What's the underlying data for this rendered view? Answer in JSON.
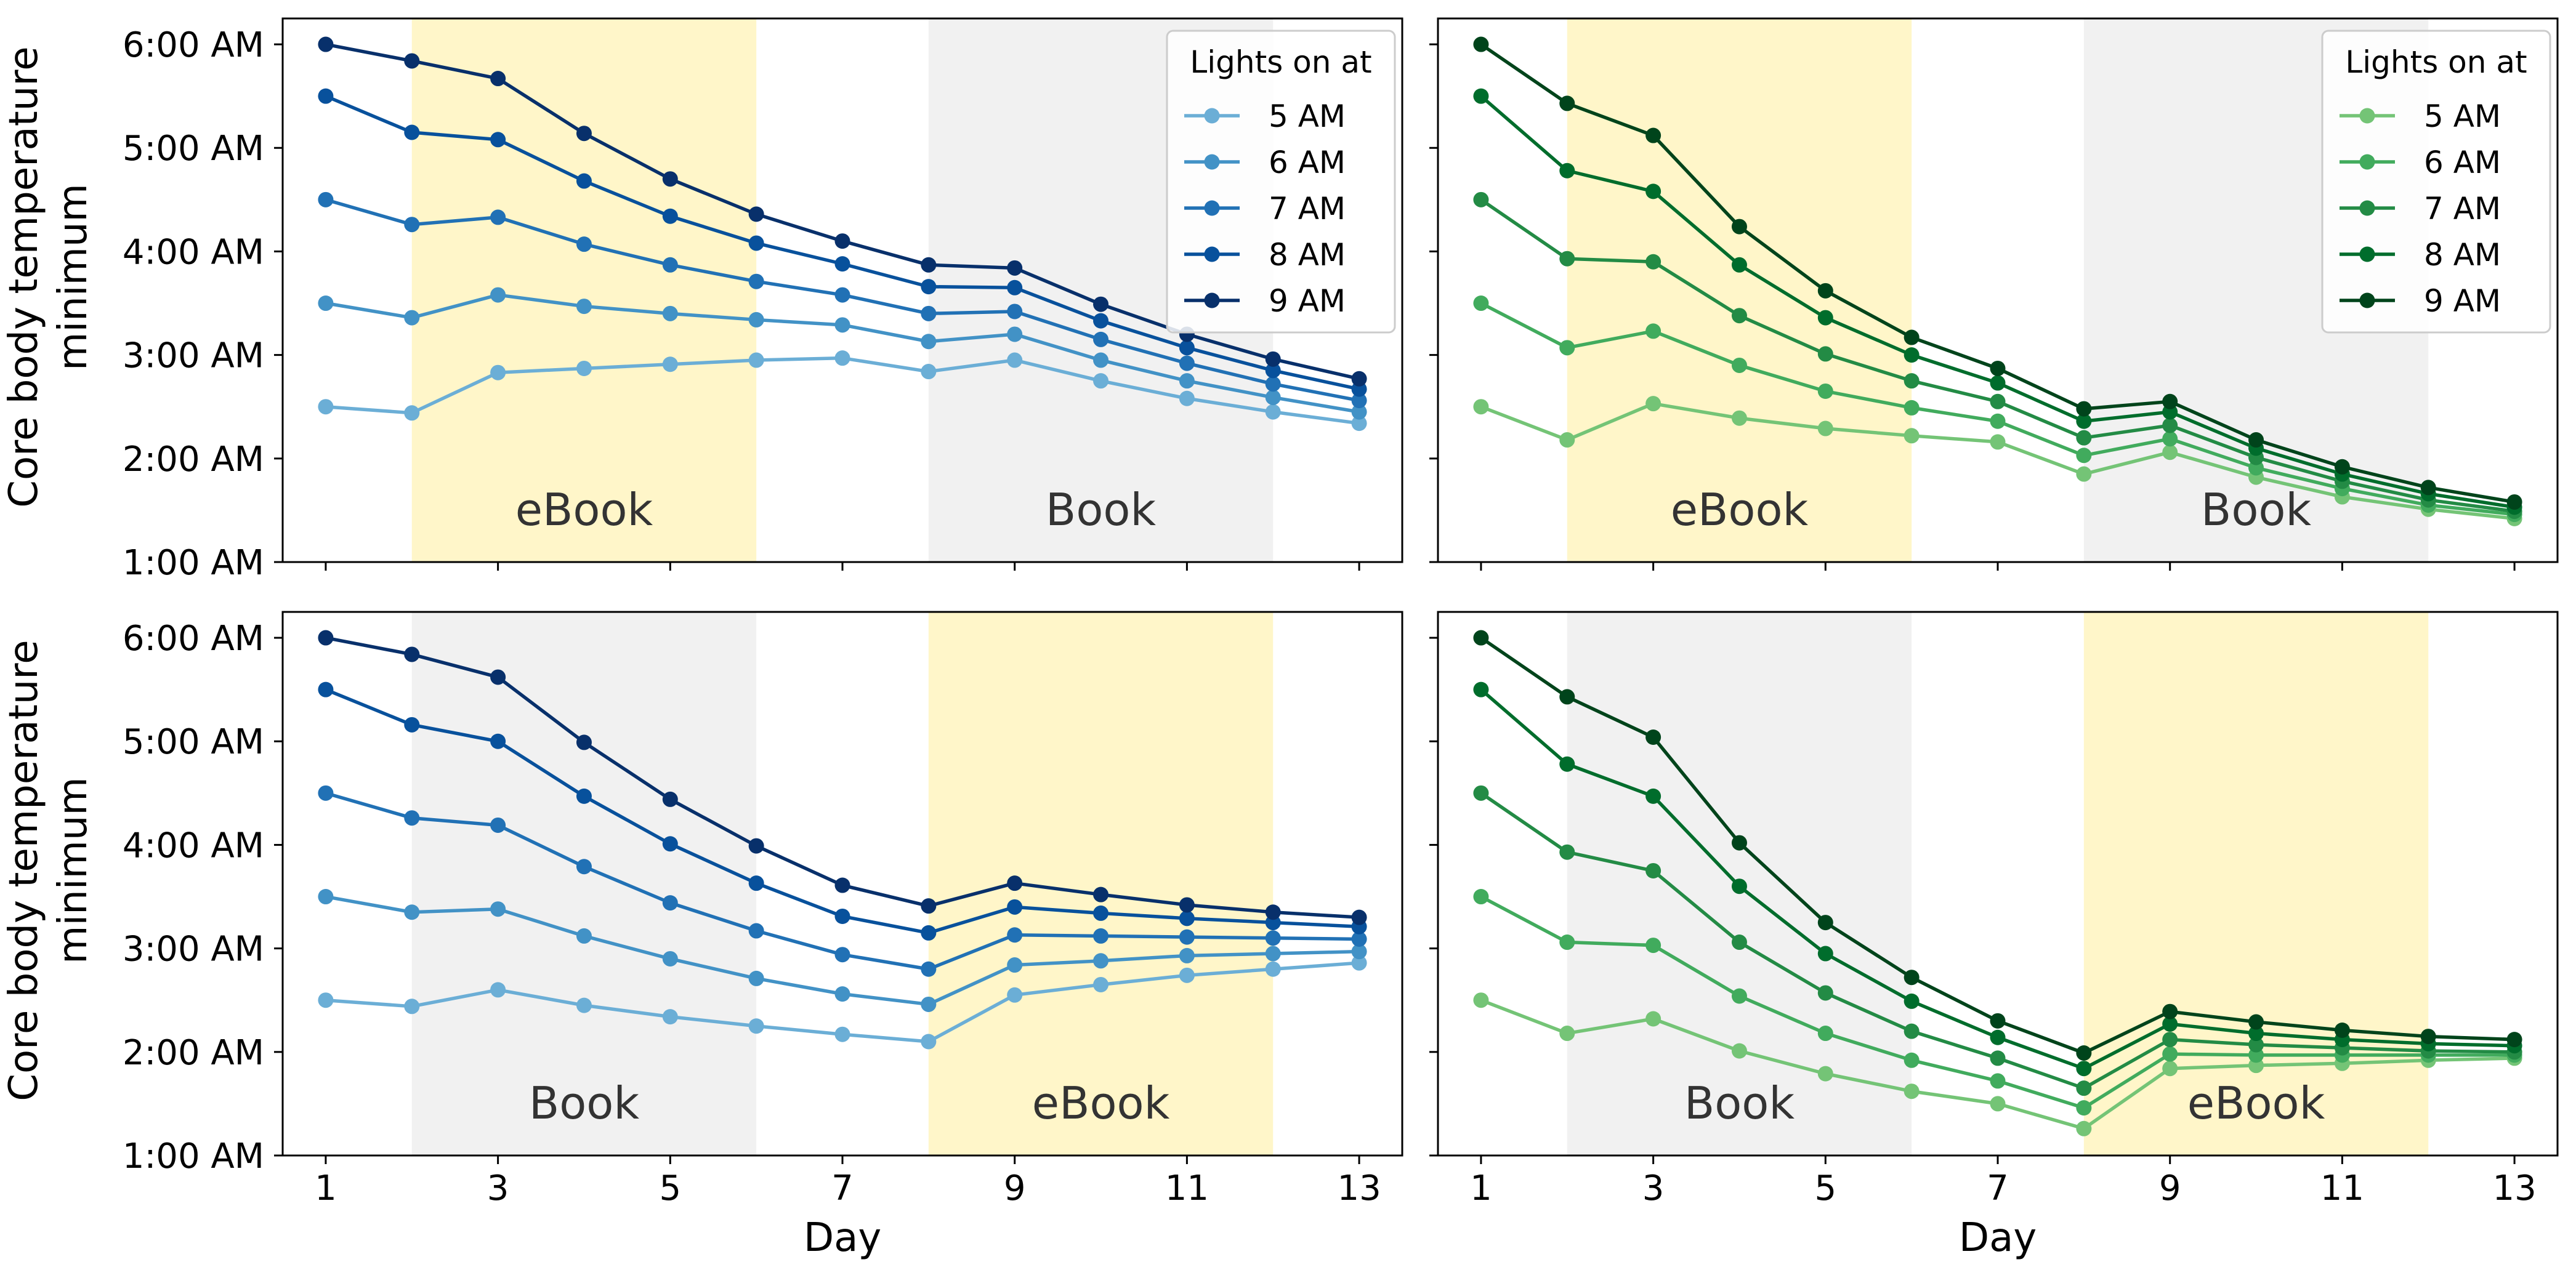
{
  "figure": {
    "shared_x_label": "Day",
    "shared_y_label_lines": [
      "Core body temperature",
      "minimum"
    ],
    "legend_title": "Lights on at",
    "blue_palette": [
      "#6baed6",
      "#4292c6",
      "#2171b5",
      "#08519c",
      "#08306b"
    ],
    "green_palette": [
      "#74c476",
      "#41ab5d",
      "#238b45",
      "#006d2c",
      "#00441b"
    ],
    "ebook_shade": "#fff5c0",
    "book_shade": "#e7e7e7"
  },
  "chart_data": [
    {
      "type": "line",
      "panel": "top-left",
      "palette": "blue",
      "xlabel": "",
      "ylabel": "Core body temperature minimum",
      "x": [
        1,
        2,
        3,
        4,
        5,
        6,
        7,
        8,
        9,
        10,
        11,
        12,
        13
      ],
      "x_ticks": [
        "1",
        "3",
        "5",
        "7",
        "9",
        "11",
        "13"
      ],
      "xlim": [
        0.5,
        13.5
      ],
      "ylim": [
        1.0,
        6.25
      ],
      "y_ticks": [
        "1:00 AM",
        "2:00 AM",
        "3:00 AM",
        "4:00 AM",
        "5:00 AM",
        "6:00 AM"
      ],
      "y_unit": "hours after midnight",
      "shaded_regions": [
        {
          "label": "eBook",
          "x_start": 2,
          "x_end": 6,
          "kind": "ebook"
        },
        {
          "label": "Book",
          "x_start": 8,
          "x_end": 12,
          "kind": "book"
        }
      ],
      "legend": {
        "title": "Lights on at",
        "position": "top-right"
      },
      "series": [
        {
          "name": "5 AM",
          "values": [
            2.5,
            2.44,
            2.83,
            2.87,
            2.91,
            2.95,
            2.97,
            2.84,
            2.95,
            2.75,
            2.58,
            2.45,
            2.34
          ]
        },
        {
          "name": "6 AM",
          "values": [
            3.5,
            3.36,
            3.58,
            3.47,
            3.4,
            3.34,
            3.29,
            3.13,
            3.2,
            2.95,
            2.75,
            2.59,
            2.45
          ]
        },
        {
          "name": "7 AM",
          "values": [
            4.5,
            4.26,
            4.33,
            4.07,
            3.87,
            3.71,
            3.58,
            3.4,
            3.42,
            3.15,
            2.92,
            2.72,
            2.56
          ]
        },
        {
          "name": "8 AM",
          "values": [
            5.5,
            5.15,
            5.08,
            4.68,
            4.34,
            4.08,
            3.88,
            3.66,
            3.65,
            3.33,
            3.07,
            2.85,
            2.67
          ]
        },
        {
          "name": "9 AM",
          "values": [
            6.0,
            5.84,
            5.67,
            5.14,
            4.7,
            4.36,
            4.1,
            3.87,
            3.84,
            3.49,
            3.2,
            2.96,
            2.77
          ]
        }
      ]
    },
    {
      "type": "line",
      "panel": "top-right",
      "palette": "green",
      "xlabel": "",
      "ylabel": "",
      "x": [
        1,
        2,
        3,
        4,
        5,
        6,
        7,
        8,
        9,
        10,
        11,
        12,
        13
      ],
      "x_ticks": [
        "1",
        "3",
        "5",
        "7",
        "9",
        "11",
        "13"
      ],
      "xlim": [
        0.5,
        13.5
      ],
      "ylim": [
        1.0,
        6.25
      ],
      "y_unit": "hours after midnight",
      "shaded_regions": [
        {
          "label": "eBook",
          "x_start": 2,
          "x_end": 6,
          "kind": "ebook"
        },
        {
          "label": "Book",
          "x_start": 8,
          "x_end": 12,
          "kind": "book"
        }
      ],
      "legend": {
        "title": "Lights on at",
        "position": "top-right"
      },
      "series": [
        {
          "name": "5 AM",
          "values": [
            2.5,
            2.18,
            2.53,
            2.39,
            2.29,
            2.22,
            2.16,
            1.85,
            2.06,
            1.82,
            1.63,
            1.51,
            1.42
          ]
        },
        {
          "name": "6 AM",
          "values": [
            3.5,
            3.07,
            3.23,
            2.9,
            2.65,
            2.49,
            2.36,
            2.03,
            2.19,
            1.91,
            1.71,
            1.55,
            1.46
          ]
        },
        {
          "name": "7 AM",
          "values": [
            4.5,
            3.93,
            3.9,
            3.38,
            3.01,
            2.75,
            2.55,
            2.2,
            2.32,
            2.01,
            1.78,
            1.6,
            1.49
          ]
        },
        {
          "name": "8 AM",
          "values": [
            5.5,
            4.78,
            4.58,
            3.87,
            3.36,
            3.0,
            2.73,
            2.36,
            2.45,
            2.1,
            1.85,
            1.66,
            1.53
          ]
        },
        {
          "name": "9 AM",
          "values": [
            6.0,
            5.43,
            5.12,
            4.24,
            3.62,
            3.17,
            2.87,
            2.48,
            2.55,
            2.18,
            1.92,
            1.72,
            1.58
          ]
        }
      ]
    },
    {
      "type": "line",
      "panel": "bottom-left",
      "palette": "blue",
      "xlabel": "Day",
      "ylabel": "Core body temperature minimum",
      "x": [
        1,
        2,
        3,
        4,
        5,
        6,
        7,
        8,
        9,
        10,
        11,
        12,
        13
      ],
      "x_ticks": [
        "1",
        "3",
        "5",
        "7",
        "9",
        "11",
        "13"
      ],
      "xlim": [
        0.5,
        13.5
      ],
      "ylim": [
        1.0,
        6.25
      ],
      "y_ticks": [
        "1:00 AM",
        "2:00 AM",
        "3:00 AM",
        "4:00 AM",
        "5:00 AM",
        "6:00 AM"
      ],
      "y_unit": "hours after midnight",
      "shaded_regions": [
        {
          "label": "Book",
          "x_start": 2,
          "x_end": 6,
          "kind": "book"
        },
        {
          "label": "eBook",
          "x_start": 8,
          "x_end": 12,
          "kind": "ebook"
        }
      ],
      "series": [
        {
          "name": "5 AM",
          "values": [
            2.5,
            2.44,
            2.6,
            2.45,
            2.34,
            2.25,
            2.17,
            2.1,
            2.55,
            2.65,
            2.74,
            2.8,
            2.86
          ]
        },
        {
          "name": "6 AM",
          "values": [
            3.5,
            3.35,
            3.38,
            3.12,
            2.9,
            2.71,
            2.56,
            2.46,
            2.84,
            2.88,
            2.93,
            2.95,
            2.97
          ]
        },
        {
          "name": "7 AM",
          "values": [
            4.5,
            4.26,
            4.19,
            3.79,
            3.44,
            3.17,
            2.94,
            2.8,
            3.13,
            3.12,
            3.11,
            3.1,
            3.09
          ]
        },
        {
          "name": "8 AM",
          "values": [
            5.5,
            5.16,
            5.0,
            4.47,
            4.01,
            3.63,
            3.31,
            3.15,
            3.4,
            3.34,
            3.29,
            3.25,
            3.21
          ]
        },
        {
          "name": "9 AM",
          "values": [
            6.0,
            5.84,
            5.62,
            4.99,
            4.44,
            3.99,
            3.61,
            3.41,
            3.63,
            3.52,
            3.42,
            3.35,
            3.3
          ]
        }
      ]
    },
    {
      "type": "line",
      "panel": "bottom-right",
      "palette": "green",
      "xlabel": "Day",
      "ylabel": "",
      "x": [
        1,
        2,
        3,
        4,
        5,
        6,
        7,
        8,
        9,
        10,
        11,
        12,
        13
      ],
      "x_ticks": [
        "1",
        "3",
        "5",
        "7",
        "9",
        "11",
        "13"
      ],
      "xlim": [
        0.5,
        13.5
      ],
      "ylim": [
        1.0,
        6.25
      ],
      "y_unit": "hours after midnight",
      "shaded_regions": [
        {
          "label": "Book",
          "x_start": 2,
          "x_end": 6,
          "kind": "book"
        },
        {
          "label": "eBook",
          "x_start": 8,
          "x_end": 12,
          "kind": "ebook"
        }
      ],
      "series": [
        {
          "name": "5 AM",
          "values": [
            2.5,
            2.18,
            2.32,
            2.01,
            1.79,
            1.62,
            1.5,
            1.26,
            1.84,
            1.87,
            1.89,
            1.92,
            1.94
          ]
        },
        {
          "name": "6 AM",
          "values": [
            3.5,
            3.06,
            3.03,
            2.54,
            2.18,
            1.92,
            1.72,
            1.46,
            1.98,
            1.97,
            1.97,
            1.97,
            1.97
          ]
        },
        {
          "name": "7 AM",
          "values": [
            4.5,
            3.93,
            3.75,
            3.06,
            2.57,
            2.2,
            1.94,
            1.65,
            2.12,
            2.07,
            2.04,
            2.01,
            2.0
          ]
        },
        {
          "name": "8 AM",
          "values": [
            5.5,
            4.78,
            4.47,
            3.6,
            2.95,
            2.49,
            2.14,
            1.84,
            2.27,
            2.18,
            2.12,
            2.08,
            2.06
          ]
        },
        {
          "name": "9 AM",
          "values": [
            6.0,
            5.43,
            5.04,
            4.02,
            3.25,
            2.72,
            2.3,
            1.99,
            2.39,
            2.29,
            2.21,
            2.15,
            2.12
          ]
        }
      ]
    }
  ]
}
